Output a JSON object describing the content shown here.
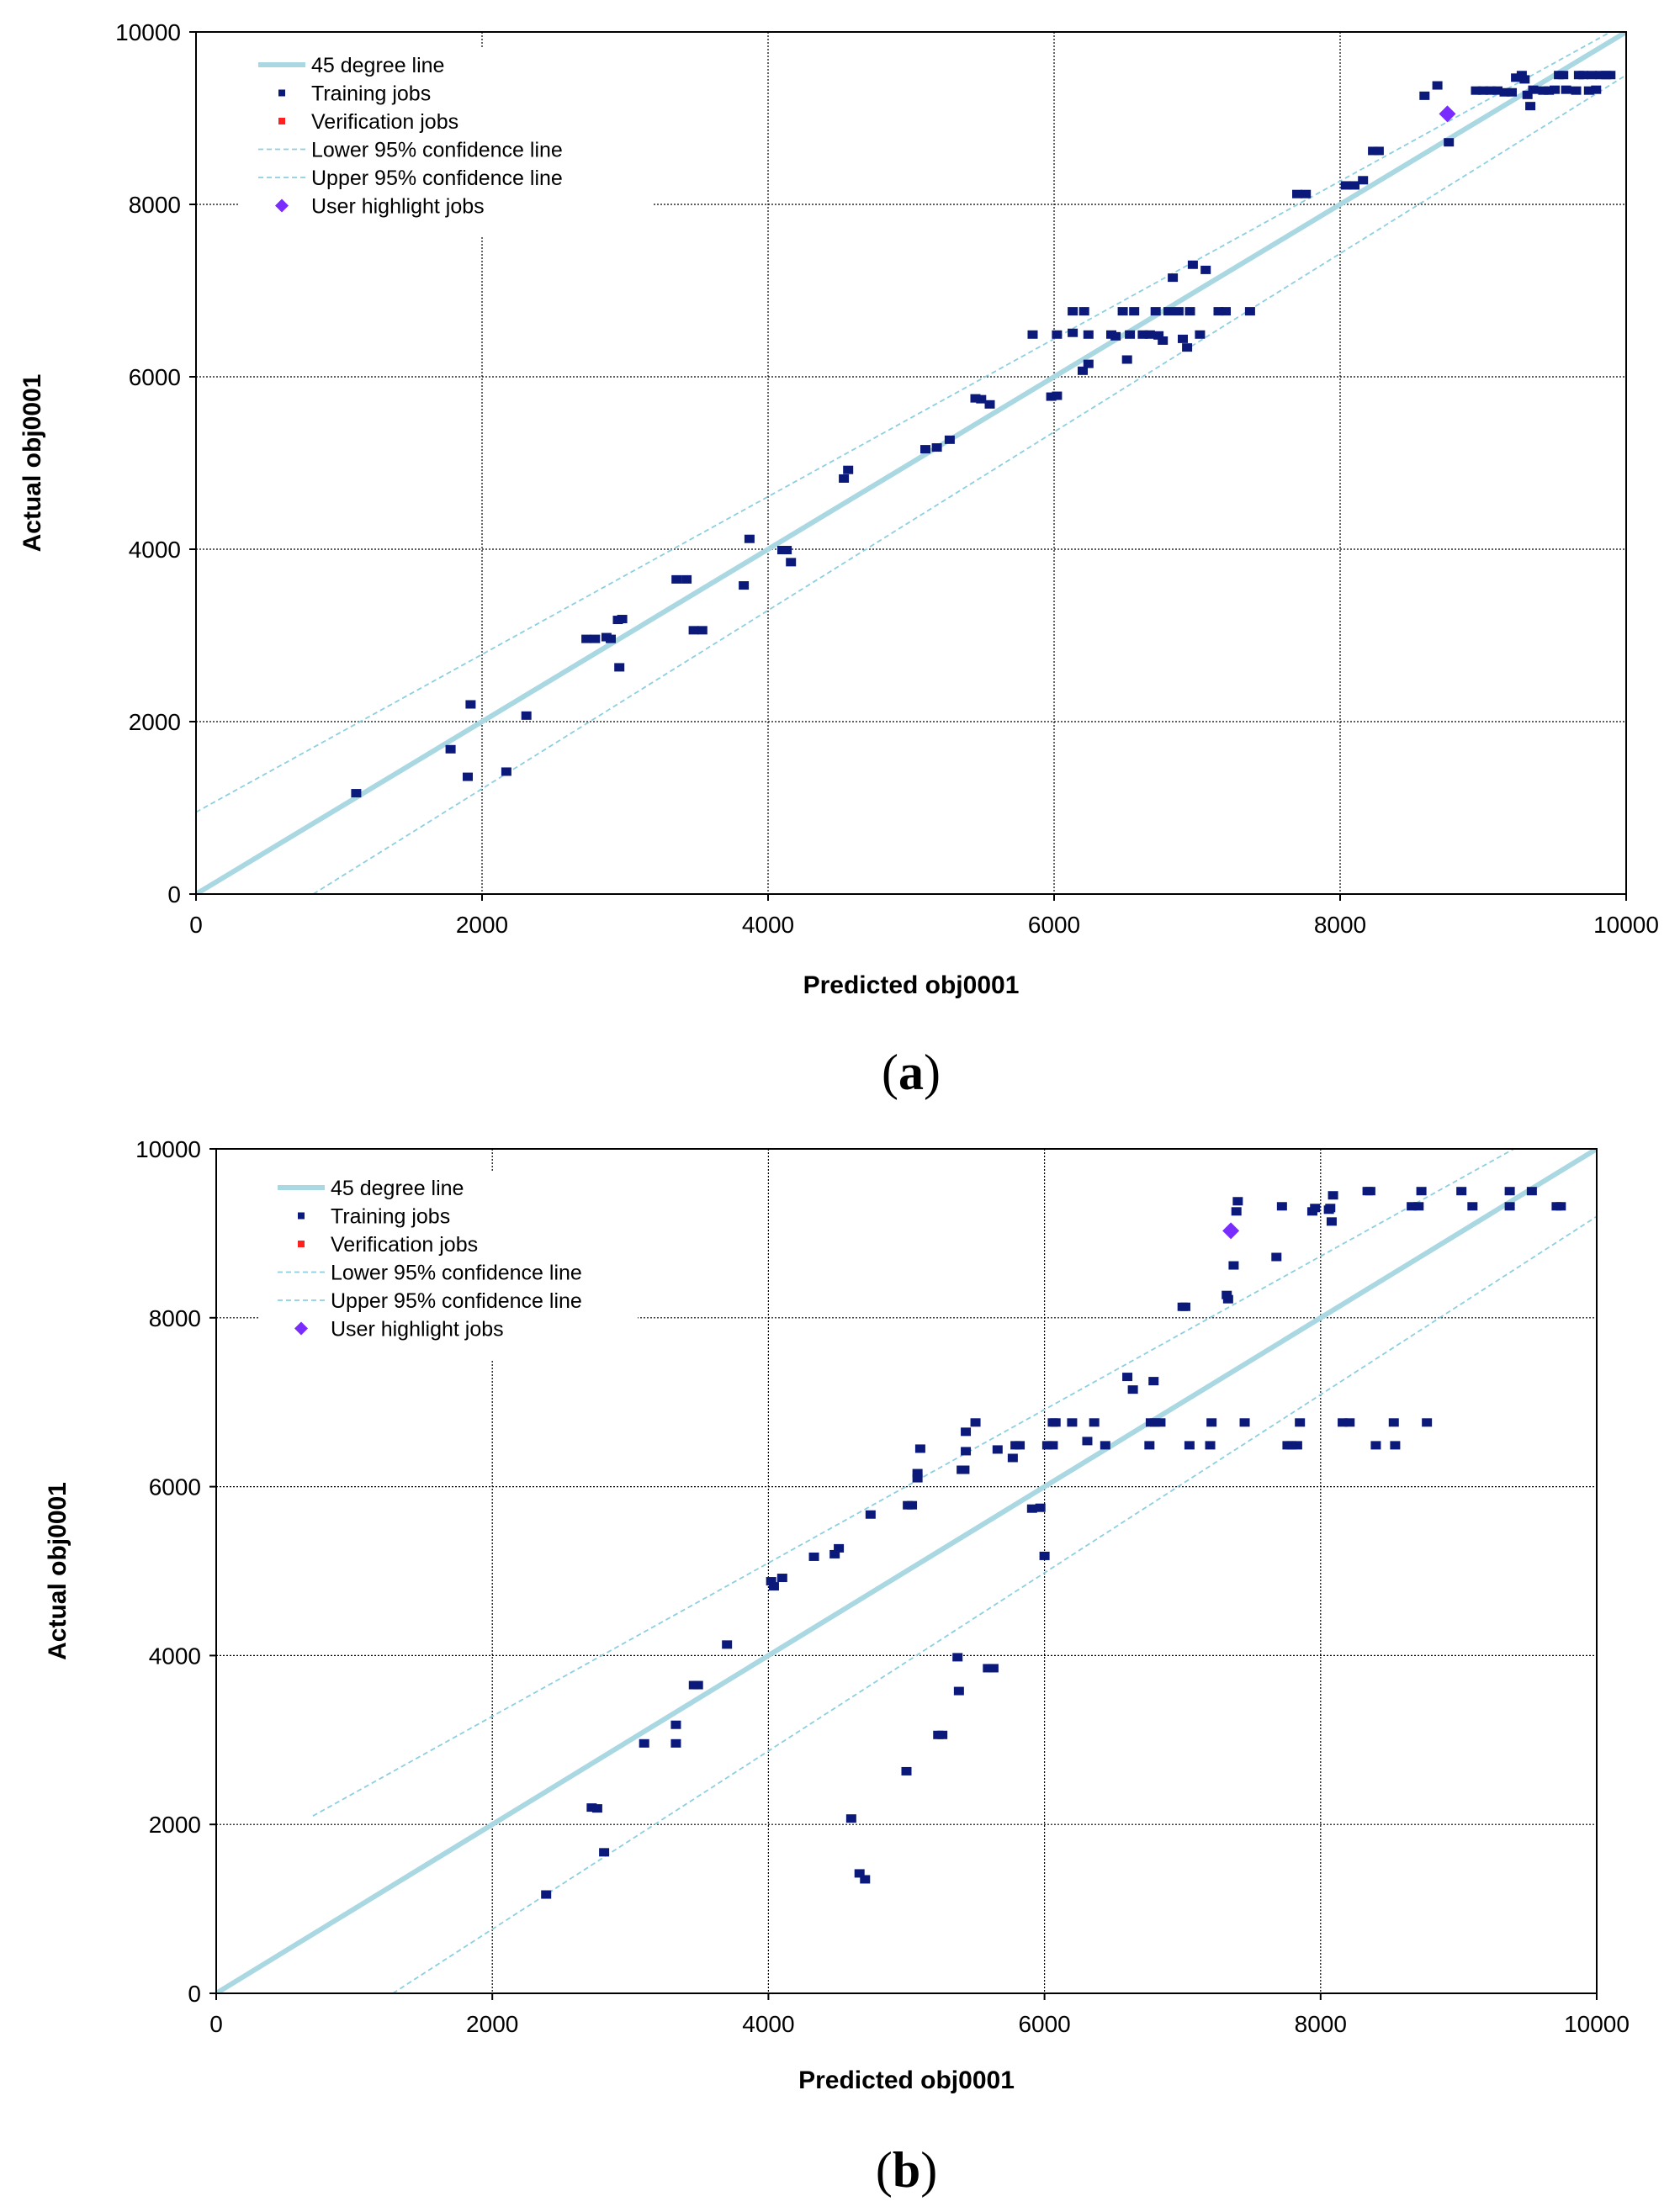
{
  "colors": {
    "training": "#0b1a7a",
    "verification": "#ff2020",
    "highlight": "#7a2cff",
    "line45": "#a9d8e2",
    "confidence": "#8ccfe0",
    "grid": "#000000"
  },
  "chart_data": [
    {
      "panel": "(a)",
      "type": "scatter",
      "xlabel": "Predicted obj0001",
      "ylabel": "Actual obj0001",
      "xlim": [
        0,
        10000
      ],
      "ylim": [
        0,
        10000
      ],
      "xticks": [
        "0",
        "2000",
        "4000",
        "6000",
        "8000",
        "10000"
      ],
      "yticks": [
        "0",
        "2000",
        "4000",
        "6000",
        "8000",
        "10000"
      ],
      "grid": true,
      "legend": [
        "45 degree line",
        "Training jobs",
        "Verification jobs",
        "Lower 95% confidence line",
        "Upper 95% confidence line",
        "User highlight jobs"
      ],
      "line_45": [
        [
          0,
          0
        ],
        [
          10000,
          10000
        ]
      ],
      "lower_ci": [
        [
          820,
          0
        ],
        [
          10000,
          9500
        ]
      ],
      "upper_ci": [
        [
          0,
          950
        ],
        [
          10000,
          10100
        ]
      ],
      "training": [
        [
          1120,
          1170
        ],
        [
          1780,
          1680
        ],
        [
          1900,
          1360
        ],
        [
          1920,
          2200
        ],
        [
          2170,
          1420
        ],
        [
          2310,
          2070
        ],
        [
          2730,
          2960
        ],
        [
          2790,
          2960
        ],
        [
          2870,
          2980
        ],
        [
          2900,
          2960
        ],
        [
          2950,
          3180
        ],
        [
          2980,
          3190
        ],
        [
          2960,
          2630
        ],
        [
          3360,
          3650
        ],
        [
          3430,
          3650
        ],
        [
          3480,
          3060
        ],
        [
          3540,
          3060
        ],
        [
          3830,
          3580
        ],
        [
          3870,
          4120
        ],
        [
          4100,
          3990
        ],
        [
          4130,
          3990
        ],
        [
          4160,
          3850
        ],
        [
          4530,
          4820
        ],
        [
          4560,
          4920
        ],
        [
          5100,
          5160
        ],
        [
          5180,
          5180
        ],
        [
          5270,
          5270
        ],
        [
          5450,
          5750
        ],
        [
          5490,
          5740
        ],
        [
          5550,
          5680
        ],
        [
          5850,
          6490
        ],
        [
          5980,
          5770
        ],
        [
          6020,
          5780
        ],
        [
          6020,
          6490
        ],
        [
          6130,
          6760
        ],
        [
          6130,
          6510
        ],
        [
          6200,
          6070
        ],
        [
          6210,
          6760
        ],
        [
          6240,
          6150
        ],
        [
          6240,
          6490
        ],
        [
          6400,
          6490
        ],
        [
          6430,
          6470
        ],
        [
          6480,
          6760
        ],
        [
          6510,
          6200
        ],
        [
          6530,
          6490
        ],
        [
          6560,
          6760
        ],
        [
          6620,
          6490
        ],
        [
          6670,
          6490
        ],
        [
          6710,
          6760
        ],
        [
          6730,
          6480
        ],
        [
          6760,
          6420
        ],
        [
          6800,
          6760
        ],
        [
          6830,
          7150
        ],
        [
          6870,
          6760
        ],
        [
          6900,
          6440
        ],
        [
          6930,
          6340
        ],
        [
          6950,
          6760
        ],
        [
          6970,
          7300
        ],
        [
          7020,
          6490
        ],
        [
          7060,
          7240
        ],
        [
          7150,
          6760
        ],
        [
          7200,
          6760
        ],
        [
          7370,
          6760
        ],
        [
          7700,
          8120
        ],
        [
          7760,
          8120
        ],
        [
          8040,
          8220
        ],
        [
          8100,
          8220
        ],
        [
          8160,
          8280
        ],
        [
          8230,
          8620
        ],
        [
          8270,
          8620
        ],
        [
          8590,
          9260
        ],
        [
          8680,
          9380
        ],
        [
          8760,
          8720
        ],
        [
          8950,
          9320
        ],
        [
          9000,
          9320
        ],
        [
          9050,
          9320
        ],
        [
          9100,
          9320
        ],
        [
          9150,
          9300
        ],
        [
          9200,
          9300
        ],
        [
          9230,
          9470
        ],
        [
          9270,
          9500
        ],
        [
          9290,
          9450
        ],
        [
          9310,
          9270
        ],
        [
          9330,
          9140
        ],
        [
          9350,
          9330
        ],
        [
          9420,
          9320
        ],
        [
          9460,
          9320
        ],
        [
          9500,
          9330
        ],
        [
          9530,
          9500
        ],
        [
          9560,
          9500
        ],
        [
          9580,
          9330
        ],
        [
          9650,
          9320
        ],
        [
          9670,
          9500
        ],
        [
          9700,
          9500
        ],
        [
          9740,
          9320
        ],
        [
          9760,
          9500
        ],
        [
          9790,
          9330
        ],
        [
          9820,
          9500
        ],
        [
          9860,
          9500
        ],
        [
          9890,
          9500
        ]
      ],
      "verification": [],
      "highlight": [
        [
          8750,
          9050
        ]
      ]
    },
    {
      "panel": "(b)",
      "type": "scatter",
      "xlabel": "Predicted obj0001",
      "ylabel": "Actual obj0001",
      "xlim": [
        0,
        10000
      ],
      "ylim": [
        0,
        10000
      ],
      "xticks": [
        "0",
        "2000",
        "4000",
        "6000",
        "8000",
        "10000"
      ],
      "yticks": [
        "0",
        "2000",
        "4000",
        "6000",
        "8000",
        "10000"
      ],
      "grid": true,
      "legend": [
        "45 degree line",
        "Training jobs",
        "Verification jobs",
        "Lower 95% confidence line",
        "Upper 95% confidence line",
        "User highlight jobs"
      ],
      "line_45": [
        [
          0,
          0
        ],
        [
          10000,
          10000
        ]
      ],
      "lower_ci": [
        [
          1280,
          0
        ],
        [
          10000,
          9200
        ]
      ],
      "upper_ci": [
        [
          700,
          2100
        ],
        [
          9400,
          10000
        ]
      ],
      "training": [
        [
          2390,
          1170
        ],
        [
          2720,
          2200
        ],
        [
          2760,
          2190
        ],
        [
          2810,
          1670
        ],
        [
          3100,
          2960
        ],
        [
          3330,
          2960
        ],
        [
          3330,
          3180
        ],
        [
          3460,
          3650
        ],
        [
          3490,
          3650
        ],
        [
          3700,
          4130
        ],
        [
          4020,
          4880
        ],
        [
          4040,
          4820
        ],
        [
          4100,
          4920
        ],
        [
          4330,
          5170
        ],
        [
          4480,
          5200
        ],
        [
          4510,
          5270
        ],
        [
          4600,
          2070
        ],
        [
          4660,
          1420
        ],
        [
          4700,
          1350
        ],
        [
          4740,
          5670
        ],
        [
          5000,
          2630
        ],
        [
          5010,
          5780
        ],
        [
          5040,
          5780
        ],
        [
          5080,
          6100
        ],
        [
          5080,
          6160
        ],
        [
          5100,
          6450
        ],
        [
          5230,
          3060
        ],
        [
          5260,
          3060
        ],
        [
          5370,
          3980
        ],
        [
          5380,
          3580
        ],
        [
          5400,
          6200
        ],
        [
          5420,
          6200
        ],
        [
          5430,
          6420
        ],
        [
          5430,
          6650
        ],
        [
          5500,
          6760
        ],
        [
          5590,
          3850
        ],
        [
          5630,
          3850
        ],
        [
          5660,
          6440
        ],
        [
          5770,
          6340
        ],
        [
          5790,
          6490
        ],
        [
          5820,
          6490
        ],
        [
          5910,
          5740
        ],
        [
          5970,
          5750
        ],
        [
          6000,
          5180
        ],
        [
          6020,
          6490
        ],
        [
          6060,
          6490
        ],
        [
          6060,
          6760
        ],
        [
          6080,
          6760
        ],
        [
          6200,
          6760
        ],
        [
          6310,
          6540
        ],
        [
          6360,
          6760
        ],
        [
          6440,
          6490
        ],
        [
          6600,
          7300
        ],
        [
          6640,
          7150
        ],
        [
          6760,
          6490
        ],
        [
          6770,
          6760
        ],
        [
          6790,
          7250
        ],
        [
          6800,
          6760
        ],
        [
          6840,
          6760
        ],
        [
          7050,
          6490
        ],
        [
          7200,
          6490
        ],
        [
          7210,
          6760
        ],
        [
          7000,
          8130
        ],
        [
          7020,
          8130
        ],
        [
          7320,
          8270
        ],
        [
          7330,
          8220
        ],
        [
          7370,
          8620
        ],
        [
          7390,
          9260
        ],
        [
          7400,
          9380
        ],
        [
          7450,
          6760
        ],
        [
          7680,
          8720
        ],
        [
          7720,
          9320
        ],
        [
          7760,
          6490
        ],
        [
          7790,
          6490
        ],
        [
          7830,
          6490
        ],
        [
          7850,
          6760
        ],
        [
          7940,
          9260
        ],
        [
          7960,
          9300
        ],
        [
          8060,
          9280
        ],
        [
          8070,
          9300
        ],
        [
          8080,
          9140
        ],
        [
          8090,
          9450
        ],
        [
          8160,
          6760
        ],
        [
          8210,
          6760
        ],
        [
          8340,
          9500
        ],
        [
          8360,
          9500
        ],
        [
          8400,
          6490
        ],
        [
          8530,
          6760
        ],
        [
          8540,
          6490
        ],
        [
          8660,
          9320
        ],
        [
          8710,
          9320
        ],
        [
          8730,
          9500
        ],
        [
          8770,
          6760
        ],
        [
          9020,
          9500
        ],
        [
          9100,
          9320
        ],
        [
          9370,
          9320
        ],
        [
          9370,
          9500
        ],
        [
          9530,
          9500
        ],
        [
          9710,
          9320
        ],
        [
          9740,
          9320
        ]
      ],
      "verification": [],
      "highlight": [
        [
          7350,
          9030
        ]
      ]
    }
  ]
}
